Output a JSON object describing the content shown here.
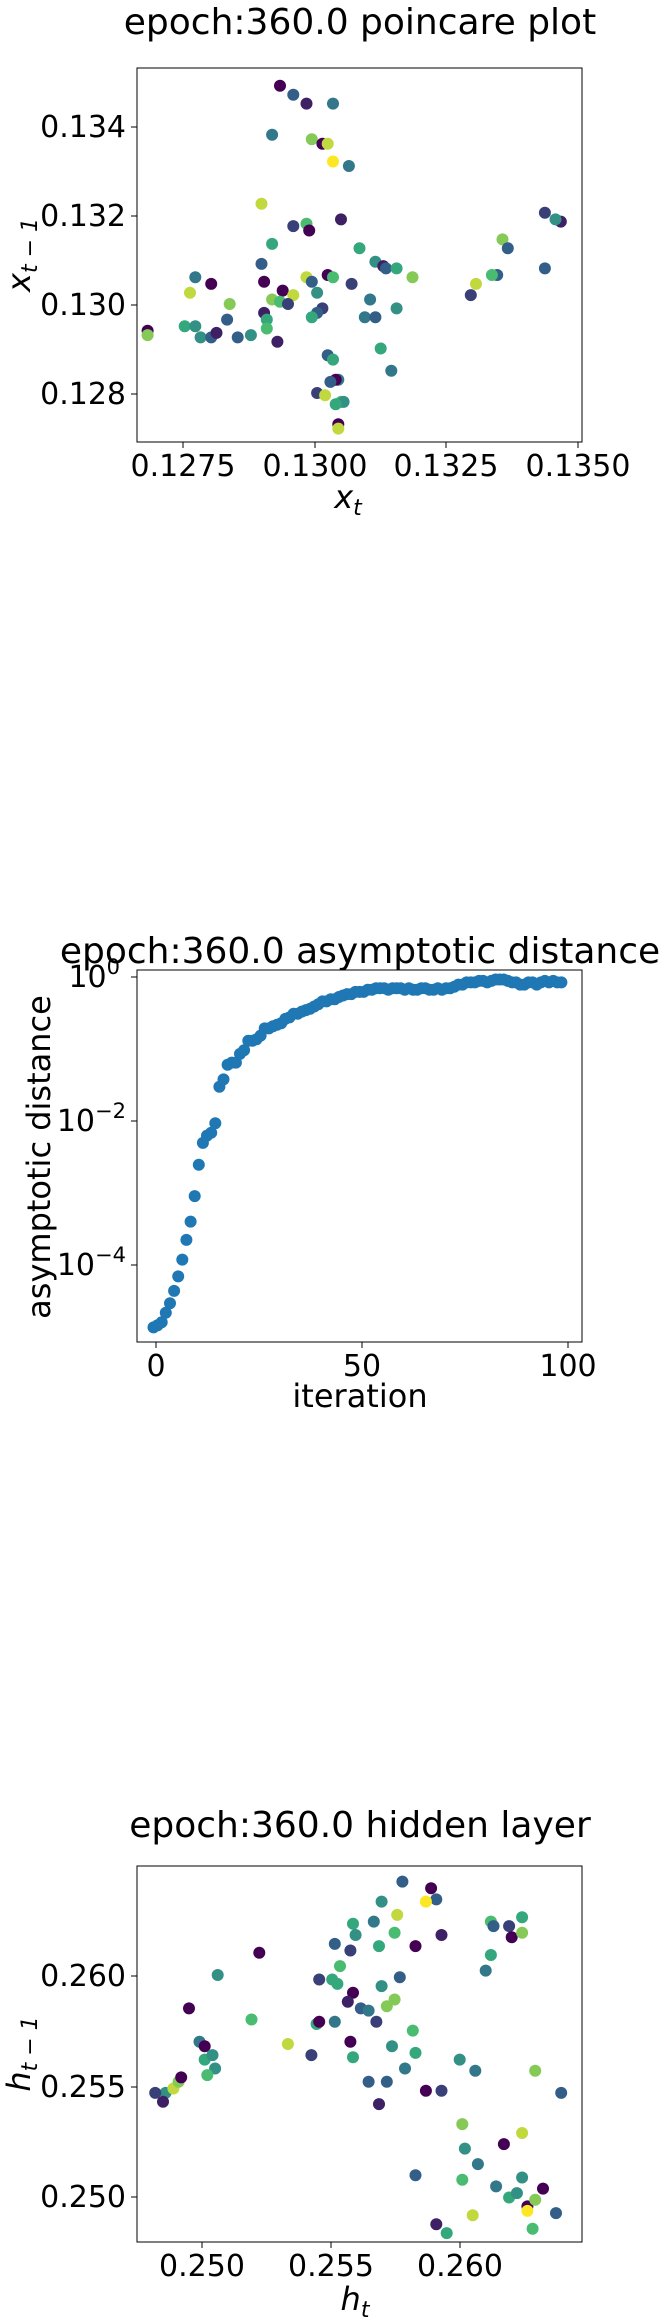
{
  "charts": {
    "poincare": {
      "title": "epoch:360.0 poincare plot",
      "xlabel_base": "x",
      "xlabel_sub": "t",
      "ylabel_base": "x",
      "ylabel_sub": "t − 1",
      "xticks": [
        "0.1275",
        "0.1300",
        "0.1325",
        "0.1350"
      ],
      "yticks": [
        "0.128",
        "0.130",
        "0.132",
        "0.134"
      ]
    },
    "asymptotic": {
      "title": "epoch:360.0 asymptotic distance",
      "xlabel": "iteration",
      "ylabel": "asymptotic distance",
      "xticks": [
        "0",
        "50",
        "100"
      ],
      "ytick_base": "10",
      "ytick_exps": [
        "0",
        "−2",
        "−4"
      ]
    },
    "hidden": {
      "title": "epoch:360.0 hidden layer",
      "xlabel_base": "h",
      "xlabel_sub": "t",
      "ylabel_base": "h",
      "ylabel_sub": "t − 1",
      "xticks": [
        "0.250",
        "0.255",
        "0.260"
      ],
      "yticks": [
        "0.250",
        "0.255",
        "0.260"
      ]
    }
  },
  "chart_data": [
    {
      "type": "scatter",
      "title": "epoch:360.0 poincare plot",
      "xlabel": "x_t",
      "ylabel": "x_{t-1}",
      "xlim": [
        0.1268,
        0.1352
      ],
      "ylim": [
        0.1269,
        0.1353
      ],
      "colormap": [
        "#440154",
        "#31688e",
        "#35b779",
        "#fde725"
      ],
      "points": [
        [
          0.1295,
          0.1349,
          0.0
        ],
        [
          0.12975,
          0.1347,
          0.3
        ],
        [
          0.13,
          0.1345,
          0.1
        ],
        [
          0.1305,
          0.1345,
          0.4
        ],
        [
          0.12935,
          0.1338,
          0.4
        ],
        [
          0.1301,
          0.1337,
          0.8
        ],
        [
          0.1303,
          0.1336,
          0.0
        ],
        [
          0.1304,
          0.1336,
          0.9
        ],
        [
          0.1305,
          0.1332,
          1.0
        ],
        [
          0.1308,
          0.1331,
          0.4
        ],
        [
          0.12915,
          0.13225,
          0.9
        ],
        [
          0.13065,
          0.1319,
          0.1
        ],
        [
          0.13,
          0.1318,
          0.7
        ],
        [
          0.12975,
          0.13175,
          0.2
        ],
        [
          0.13005,
          0.13165,
          0.0
        ],
        [
          0.12935,
          0.13135,
          0.6
        ],
        [
          0.131,
          0.13125,
          0.6
        ],
        [
          0.1313,
          0.13095,
          0.5
        ],
        [
          0.13145,
          0.13085,
          0.1
        ],
        [
          0.1315,
          0.1308,
          0.3
        ],
        [
          0.12915,
          0.1309,
          0.3
        ],
        [
          0.1317,
          0.1308,
          0.6
        ],
        [
          0.132,
          0.1306,
          0.8
        ],
        [
          0.1304,
          0.13065,
          0.0
        ],
        [
          0.13,
          0.1306,
          0.9
        ],
        [
          0.1301,
          0.1305,
          0.3
        ],
        [
          0.1292,
          0.1305,
          0.0
        ],
        [
          0.1305,
          0.1306,
          0.7
        ],
        [
          0.12955,
          0.1303,
          0.0
        ],
        [
          0.12975,
          0.1302,
          0.9
        ],
        [
          0.13085,
          0.13045,
          0.2
        ],
        [
          0.1302,
          0.13025,
          0.5
        ],
        [
          0.1312,
          0.1301,
          0.4
        ],
        [
          0.12935,
          0.1301,
          0.8
        ],
        [
          0.1295,
          0.13005,
          0.7
        ],
        [
          0.12965,
          0.13,
          0.2
        ],
        [
          0.1303,
          0.1299,
          0.2
        ],
        [
          0.1317,
          0.1299,
          0.5
        ],
        [
          0.12855,
          0.13,
          0.8
        ],
        [
          0.1302,
          0.1298,
          0.3
        ],
        [
          0.1292,
          0.1298,
          0.1
        ],
        [
          0.1301,
          0.1297,
          0.6
        ],
        [
          0.1311,
          0.1297,
          0.4
        ],
        [
          0.12925,
          0.12965,
          0.6
        ],
        [
          0.1285,
          0.12965,
          0.3
        ],
        [
          0.1279,
          0.1306,
          0.4
        ],
        [
          0.1282,
          0.13045,
          0.0
        ],
        [
          0.1278,
          0.13025,
          0.9
        ],
        [
          0.1337,
          0.13145,
          0.8
        ],
        [
          0.1345,
          0.13205,
          0.2
        ],
        [
          0.1348,
          0.13185,
          0.1
        ],
        [
          0.1347,
          0.1319,
          0.5
        ],
        [
          0.1338,
          0.13125,
          0.3
        ],
        [
          0.1336,
          0.13065,
          0.3
        ],
        [
          0.1335,
          0.13065,
          0.7
        ],
        [
          0.1332,
          0.13045,
          0.9
        ],
        [
          0.1331,
          0.1302,
          0.2
        ],
        [
          0.1345,
          0.1308,
          0.3
        ],
        [
          0.127,
          0.1294,
          0.0
        ],
        [
          0.127,
          0.1293,
          0.8
        ],
        [
          0.1277,
          0.1295,
          0.6
        ],
        [
          0.1279,
          0.1295,
          0.5
        ],
        [
          0.128,
          0.12925,
          0.5
        ],
        [
          0.1282,
          0.12925,
          0.3
        ],
        [
          0.1283,
          0.12935,
          0.1
        ],
        [
          0.1287,
          0.12925,
          0.3
        ],
        [
          0.12895,
          0.1293,
          0.5
        ],
        [
          0.12945,
          0.12915,
          0.1
        ],
        [
          0.12925,
          0.12945,
          0.7
        ],
        [
          0.1304,
          0.12885,
          0.3
        ],
        [
          0.1305,
          0.12875,
          0.6
        ],
        [
          0.1306,
          0.1283,
          0.4
        ],
        [
          0.13055,
          0.1283,
          0.0
        ],
        [
          0.13045,
          0.12825,
          0.3
        ],
        [
          0.1302,
          0.128,
          0.2
        ],
        [
          0.13035,
          0.12795,
          0.9
        ],
        [
          0.13065,
          0.1278,
          0.7
        ],
        [
          0.1307,
          0.1278,
          0.5
        ],
        [
          0.13055,
          0.12775,
          0.6
        ],
        [
          0.1306,
          0.1273,
          0.0
        ],
        [
          0.1306,
          0.1272,
          0.9
        ],
        [
          0.1314,
          0.129,
          0.6
        ],
        [
          0.1316,
          0.1285,
          0.4
        ],
        [
          0.1313,
          0.1297,
          0.3
        ]
      ]
    },
    {
      "type": "scatter",
      "title": "epoch:360.0 asymptotic distance",
      "xlabel": "iteration",
      "ylabel": "asymptotic distance",
      "xlim": [
        -4,
        104
      ],
      "yscale": "log",
      "ylim_log10": [
        -5.05,
        0.05
      ],
      "color": "#1f77b4",
      "x": [
        0,
        1,
        2,
        3,
        4,
        5,
        6,
        7,
        8,
        9,
        10,
        11,
        12,
        13,
        14,
        15,
        16,
        17,
        18,
        19,
        20,
        21,
        22,
        23,
        24,
        25,
        26,
        27,
        28,
        29,
        30,
        31,
        32,
        33,
        34,
        35,
        36,
        37,
        38,
        39,
        40,
        41,
        42,
        43,
        44,
        45,
        46,
        47,
        48,
        49,
        50,
        51,
        52,
        53,
        54,
        55,
        56,
        57,
        58,
        59,
        60,
        61,
        62,
        63,
        64,
        65,
        66,
        67,
        68,
        69,
        70,
        71,
        72,
        73,
        74,
        75,
        76,
        77,
        78,
        79,
        80,
        81,
        82,
        83,
        84,
        85,
        86,
        87,
        88,
        89,
        90,
        91,
        92,
        93,
        94,
        95,
        96,
        97,
        98,
        99
      ],
      "log10_y": [
        -4.85,
        -4.82,
        -4.78,
        -4.65,
        -4.52,
        -4.35,
        -4.15,
        -3.92,
        -3.65,
        -3.4,
        -3.05,
        -2.62,
        -2.32,
        -2.22,
        -2.18,
        -2.05,
        -1.55,
        -1.45,
        -1.25,
        -1.22,
        -1.22,
        -1.1,
        -1.05,
        -0.92,
        -0.92,
        -0.9,
        -0.85,
        -0.75,
        -0.75,
        -0.72,
        -0.7,
        -0.68,
        -0.62,
        -0.6,
        -0.55,
        -0.55,
        -0.52,
        -0.5,
        -0.48,
        -0.45,
        -0.42,
        -0.38,
        -0.38,
        -0.35,
        -0.35,
        -0.32,
        -0.3,
        -0.28,
        -0.28,
        -0.25,
        -0.25,
        -0.25,
        -0.22,
        -0.22,
        -0.2,
        -0.2,
        -0.2,
        -0.22,
        -0.2,
        -0.2,
        -0.2,
        -0.22,
        -0.2,
        -0.22,
        -0.22,
        -0.2,
        -0.2,
        -0.22,
        -0.22,
        -0.2,
        -0.22,
        -0.2,
        -0.2,
        -0.18,
        -0.15,
        -0.15,
        -0.12,
        -0.12,
        -0.12,
        -0.1,
        -0.1,
        -0.12,
        -0.1,
        -0.08,
        -0.08,
        -0.08,
        -0.1,
        -0.12,
        -0.12,
        -0.15,
        -0.15,
        -0.12,
        -0.12,
        -0.15,
        -0.12,
        -0.1,
        -0.12,
        -0.1,
        -0.12,
        -0.12
      ]
    },
    {
      "type": "scatter",
      "title": "epoch:360.0 hidden layer",
      "xlabel": "h_t",
      "ylabel": "h_{t-1}",
      "xlim": [
        0.2474,
        0.2645
      ],
      "ylim": [
        0.2478,
        0.2647
      ],
      "colormap": [
        "#440154",
        "#31688e",
        "#35b779",
        "#fde725"
      ],
      "points": [
        [
          0.2576,
          0.264,
          0.3
        ],
        [
          0.2587,
          0.2637,
          0.0
        ],
        [
          0.2589,
          0.2632,
          0.3
        ],
        [
          0.2585,
          0.2631,
          1.0
        ],
        [
          0.2568,
          0.2631,
          0.5
        ],
        [
          0.2573,
          0.2617,
          0.7
        ],
        [
          0.2565,
          0.2622,
          0.4
        ],
        [
          0.2557,
          0.2621,
          0.6
        ],
        [
          0.2558,
          0.2616,
          0.5
        ],
        [
          0.2574,
          0.2625,
          0.9
        ],
        [
          0.261,
          0.2622,
          0.7
        ],
        [
          0.2611,
          0.262,
          0.3
        ],
        [
          0.2617,
          0.262,
          0.2
        ],
        [
          0.2622,
          0.2624,
          0.6
        ],
        [
          0.2618,
          0.2615,
          0.0
        ],
        [
          0.2622,
          0.2617,
          0.8
        ],
        [
          0.255,
          0.2612,
          0.3
        ],
        [
          0.2556,
          0.2609,
          0.2
        ],
        [
          0.2567,
          0.2611,
          0.6
        ],
        [
          0.2581,
          0.2611,
          0.0
        ],
        [
          0.2591,
          0.2616,
          0.1
        ],
        [
          0.261,
          0.2607,
          0.6
        ],
        [
          0.2608,
          0.26,
          0.4
        ],
        [
          0.2521,
          0.2608,
          0.0
        ],
        [
          0.2505,
          0.2598,
          0.5
        ],
        [
          0.2494,
          0.2583,
          0.0
        ],
        [
          0.2552,
          0.2602,
          0.7
        ],
        [
          0.2544,
          0.2596,
          0.2
        ],
        [
          0.2549,
          0.2596,
          0.6
        ],
        [
          0.2551,
          0.2594,
          0.6
        ],
        [
          0.2557,
          0.259,
          0.0
        ],
        [
          0.256,
          0.2583,
          0.3
        ],
        [
          0.2568,
          0.2593,
          0.5
        ],
        [
          0.2575,
          0.2597,
          0.3
        ],
        [
          0.2555,
          0.2586,
          0.1
        ],
        [
          0.2563,
          0.2582,
          0.4
        ],
        [
          0.257,
          0.2584,
          0.8
        ],
        [
          0.2543,
          0.2576,
          0.6
        ],
        [
          0.2544,
          0.2577,
          0.0
        ],
        [
          0.255,
          0.2577,
          0.4
        ],
        [
          0.2566,
          0.2577,
          0.2
        ],
        [
          0.2573,
          0.2587,
          0.8
        ],
        [
          0.2518,
          0.2578,
          0.7
        ],
        [
          0.2532,
          0.2567,
          0.9
        ],
        [
          0.2541,
          0.2562,
          0.2
        ],
        [
          0.2556,
          0.2568,
          0.0
        ],
        [
          0.2572,
          0.2566,
          0.5
        ],
        [
          0.258,
          0.2573,
          0.7
        ],
        [
          0.2557,
          0.2561,
          0.6
        ],
        [
          0.2563,
          0.255,
          0.3
        ],
        [
          0.2567,
          0.254,
          0.1
        ],
        [
          0.257,
          0.255,
          0.3
        ],
        [
          0.2585,
          0.2546,
          0.0
        ],
        [
          0.2591,
          0.2546,
          0.2
        ],
        [
          0.2577,
          0.2556,
          0.4
        ],
        [
          0.2581,
          0.2563,
          0.6
        ],
        [
          0.2598,
          0.256,
          0.5
        ],
        [
          0.2604,
          0.2555,
          0.4
        ],
        [
          0.2599,
          0.2531,
          0.8
        ],
        [
          0.26,
          0.252,
          0.5
        ],
        [
          0.2627,
          0.2555,
          0.8
        ],
        [
          0.2637,
          0.2545,
          0.3
        ],
        [
          0.2622,
          0.2527,
          0.9
        ],
        [
          0.2615,
          0.2522,
          0.0
        ],
        [
          0.2605,
          0.2513,
          0.4
        ],
        [
          0.2612,
          0.2503,
          0.4
        ],
        [
          0.2617,
          0.2498,
          0.6
        ],
        [
          0.262,
          0.25,
          0.5
        ],
        [
          0.2599,
          0.2506,
          0.7
        ],
        [
          0.2593,
          0.2482,
          0.6
        ],
        [
          0.2589,
          0.2486,
          0.1
        ],
        [
          0.2603,
          0.249,
          0.9
        ],
        [
          0.2622,
          0.2507,
          0.5
        ],
        [
          0.2624,
          0.2494,
          0.0
        ],
        [
          0.2627,
          0.2497,
          0.8
        ],
        [
          0.263,
          0.2502,
          0.0
        ],
        [
          0.2635,
          0.2491,
          0.3
        ],
        [
          0.2626,
          0.2484,
          0.7
        ],
        [
          0.2624,
          0.2492,
          1.0
        ],
        [
          0.2581,
          0.2508,
          0.3
        ],
        [
          0.2485,
          0.2545,
          0.5
        ],
        [
          0.2481,
          0.2545,
          0.2
        ],
        [
          0.2484,
          0.2541,
          0.1
        ],
        [
          0.2488,
          0.2547,
          0.9
        ],
        [
          0.249,
          0.255,
          0.8
        ],
        [
          0.2491,
          0.2552,
          0.0
        ],
        [
          0.2498,
          0.2568,
          0.4
        ],
        [
          0.25,
          0.2566,
          0.0
        ],
        [
          0.25,
          0.256,
          0.6
        ],
        [
          0.2503,
          0.2562,
          0.5
        ],
        [
          0.2504,
          0.2556,
          0.5
        ],
        [
          0.2501,
          0.2553,
          0.7
        ]
      ]
    }
  ]
}
